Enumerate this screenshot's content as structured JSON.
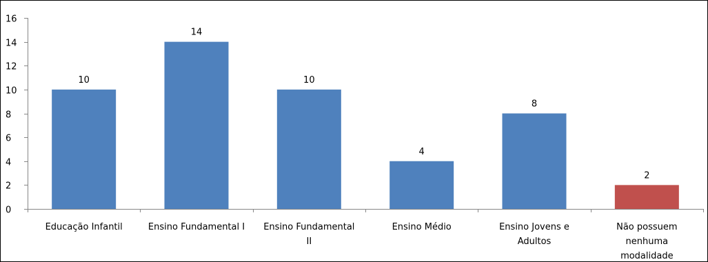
{
  "chart_data": {
    "type": "bar",
    "categories": [
      [
        "Educação Infantil"
      ],
      [
        "Ensino Fundamental I"
      ],
      [
        "Ensino Fundamental",
        "II"
      ],
      [
        "Ensino Médio"
      ],
      [
        "Ensino Jovens e",
        "Adultos"
      ],
      [
        "Não possuem",
        "nenhuma",
        "modalidade"
      ]
    ],
    "values": [
      10,
      14,
      10,
      4,
      8,
      2
    ],
    "data_labels": [
      "10",
      "14",
      "10",
      "4",
      "8",
      "2"
    ],
    "bar_colors": [
      "#4F81BD",
      "#4F81BD",
      "#4F81BD",
      "#4F81BD",
      "#4F81BD",
      "#C0504D"
    ],
    "ylim": [
      0,
      16
    ],
    "yticks": [
      0,
      2,
      4,
      6,
      8,
      10,
      12,
      14,
      16
    ],
    "ytick_labels": [
      "0",
      "2",
      "4",
      "6",
      "8",
      "10",
      "12",
      "14",
      "16"
    ],
    "title": "",
    "xlabel": "",
    "ylabel": "",
    "grid": false,
    "legend": "none"
  }
}
